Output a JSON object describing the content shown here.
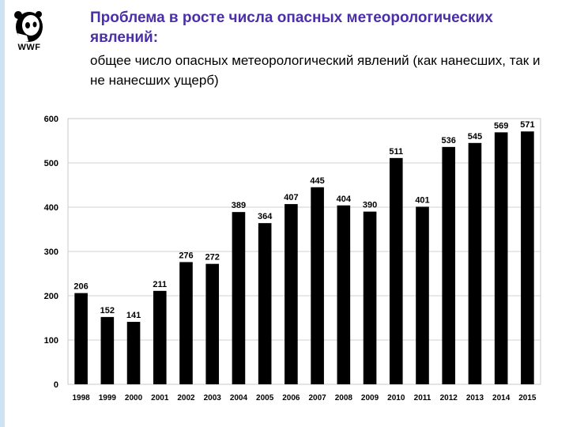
{
  "logo": {
    "text": "WWF",
    "icon": "panda-icon"
  },
  "title": "Проблема в росте числа опасных метеорологических явлений:",
  "subtitle": "общее число опасных метеорологический явлений (как нанесших, так и не нанесших ущерб)",
  "chart_data": {
    "type": "bar",
    "categories": [
      "1998",
      "1999",
      "2000",
      "2001",
      "2002",
      "2003",
      "2004",
      "2005",
      "2006",
      "2007",
      "2008",
      "2009",
      "2010",
      "2011",
      "2012",
      "2013",
      "2014",
      "2015"
    ],
    "values": [
      206,
      152,
      141,
      211,
      276,
      272,
      389,
      364,
      407,
      445,
      404,
      390,
      511,
      401,
      536,
      545,
      569,
      571
    ],
    "data_labels": [
      "206",
      "152",
      "141",
      "211",
      "276",
      "272",
      "389",
      "364",
      "407",
      "445",
      "404",
      "390",
      "511",
      "401",
      "536",
      "545",
      "569",
      "571"
    ],
    "yticks": [
      "0",
      "100",
      "200",
      "300",
      "400",
      "500",
      "600"
    ],
    "ylim": [
      0,
      600
    ],
    "bar_color": "#000000",
    "grid": true
  }
}
